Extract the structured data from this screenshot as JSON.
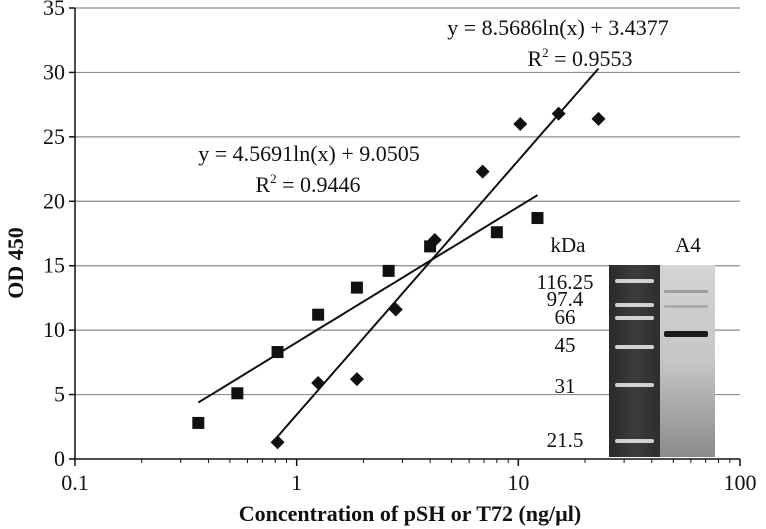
{
  "chart_data": {
    "type": "scatter",
    "xlabel": "Concentration of pSH or T72 (ng/µl)",
    "ylabel": "OD 450",
    "x_scale": "log",
    "xlim": [
      0.1,
      100
    ],
    "ylim": [
      0,
      35
    ],
    "x_ticks": [
      "0.1",
      "1",
      "10",
      "100"
    ],
    "y_ticks": [
      "0",
      "5",
      "10",
      "15",
      "20",
      "25",
      "30",
      "35"
    ],
    "grid": "horizontal",
    "series": [
      {
        "marker": "square",
        "x": [
          0.36,
          0.54,
          0.82,
          1.25,
          1.87,
          2.6,
          4.0,
          8.0,
          12.2
        ],
        "y": [
          2.8,
          5.1,
          8.3,
          11.2,
          13.3,
          14.6,
          16.5,
          17.6,
          18.7
        ],
        "trendline": {
          "a": 4.5691,
          "b": 9.0505,
          "x_from": 0.36,
          "x_to": 12.2
        },
        "equation": "y = 4.5691ln(x) + 9.0505",
        "r2": "= 0.9446"
      },
      {
        "marker": "diamond",
        "x": [
          0.82,
          1.25,
          1.87,
          2.8,
          4.2,
          6.9,
          10.2,
          15.2,
          23.0
        ],
        "y": [
          1.3,
          5.9,
          6.2,
          11.6,
          17.0,
          22.3,
          26.0,
          26.8,
          26.4
        ],
        "trendline": {
          "a": 8.5686,
          "b": 3.4377,
          "x_from": 0.82,
          "x_to": 23.0
        },
        "equation": "y = 8.5686ln(x) + 3.4377",
        "r2": "= 0.9553"
      }
    ],
    "r2_label": "R",
    "r2_exponent": "2",
    "inset": {
      "unit_label": "kDa",
      "lane_label": "A4",
      "markers": [
        "116.25",
        "97.4",
        "66",
        "45",
        "31",
        "21.5"
      ]
    }
  }
}
